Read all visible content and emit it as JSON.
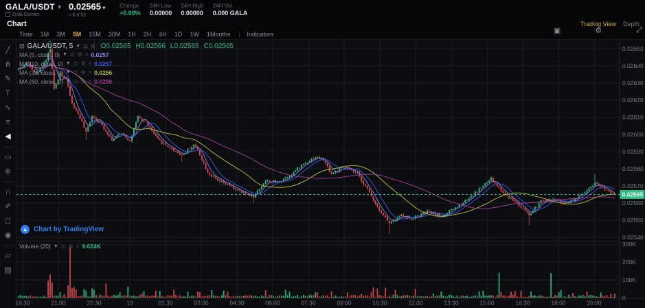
{
  "header": {
    "pair": "GALA/USDT",
    "pair_sub": "Gala Games",
    "price": "0.02565",
    "price_direction": "up",
    "price_usd": "≈ $ 0.02",
    "stats": [
      {
        "label": "Change",
        "value": "+0.00%",
        "color": "#2ebd85"
      },
      {
        "label": "24H Low",
        "value": "0.00000",
        "color": "#dfe1e4"
      },
      {
        "label": "24H High",
        "value": "0.00000",
        "color": "#dfe1e4"
      },
      {
        "label": "24H Vol.",
        "value": "0.000 GALA",
        "color": "#dfe1e4"
      }
    ]
  },
  "subheader": {
    "title": "Chart",
    "tabs": [
      {
        "label": "Trading View",
        "active": true
      },
      {
        "label": "Depth",
        "active": false
      }
    ]
  },
  "toolbar": {
    "timeframes": [
      "Time",
      "1M",
      "3M",
      "5M",
      "15M",
      "30M",
      "1H",
      "2H",
      "4H",
      "1D",
      "1W",
      "1Months"
    ],
    "active": "5M",
    "indicators_label": "Indicators",
    "right_icons": [
      "camera",
      "settings",
      "fullscreen"
    ]
  },
  "drawbar": {
    "tools": [
      "trend-line",
      "pitchfork",
      "brush",
      "text",
      "xabcd-pattern",
      "forecast",
      "collapse-left",
      "divider",
      "ruler",
      "zoom-in",
      "divider",
      "magnet",
      "drawing-lock",
      "lock",
      "eye",
      "divider",
      "layers",
      "trash"
    ]
  },
  "legend": {
    "menu_icon": "legend-menu-icon",
    "symbol": "GALA/USDT, 5",
    "ohlc": [
      "O0.02565",
      "H0.02566",
      "L0.02565",
      "C0.02565"
    ],
    "mas": [
      {
        "label": "MA (5, close, 0)",
        "value": "0.0257",
        "color": "#7e86e8"
      },
      {
        "label": "MA (10, close, 0)",
        "value": "0.0257",
        "color": "#3d56e0"
      },
      {
        "label": "MA (30, close, 0)",
        "value": "0.0256",
        "color": "#b9ba35"
      },
      {
        "label": "MA (60, close, 0)",
        "value": "0.0256",
        "color": "#a13e96"
      }
    ]
  },
  "volume_legend": {
    "label": "Volume (20)",
    "value": "9.624K"
  },
  "attribution": "Chart by TradingView",
  "colors": {
    "up": "#2ebd85",
    "down": "#e2464d",
    "accent_gold": "#d6a73f",
    "grid": "#1a1d24",
    "axis_text": "#767c87",
    "price_tag_bg": "#2ebd85",
    "tv_blue": "#2d7ff0",
    "current_price_line": "#2ebd85"
  },
  "chart_data": {
    "type": "candlestick+volume",
    "pair": "GALA/USDT",
    "interval": "5m",
    "current_price": 0.02565,
    "n_candles": 300,
    "price_ticks": [
      "0.02650",
      "0.02640",
      "0.02630",
      "0.02620",
      "0.02610",
      "0.02600",
      "0.02590",
      "0.02580",
      "0.02570",
      "0.02560",
      "0.02550",
      "0.02540"
    ],
    "price_tag": "0.02565",
    "volume_ticks": [
      "300K",
      "200K",
      "100K",
      "0"
    ],
    "time_ticks": [
      "19:30",
      "21:00",
      "22:30",
      "10",
      "01:30",
      "03:00",
      "04:30",
      "06:00",
      "07:30",
      "09:00",
      "10:30",
      "12:00",
      "13:30",
      "15:00",
      "16:30",
      "18:00",
      "20:00"
    ],
    "ma_periods": [
      5,
      10,
      30,
      60
    ],
    "price_keyframes": [
      [
        0,
        0.02638
      ],
      [
        5,
        0.02642
      ],
      [
        9,
        0.02635
      ],
      [
        14,
        0.02644
      ],
      [
        16,
        0.0265
      ],
      [
        18,
        0.02626
      ],
      [
        21,
        0.02636
      ],
      [
        24,
        0.02632
      ],
      [
        27,
        0.02618
      ],
      [
        31,
        0.0261
      ],
      [
        34,
        0.02601
      ],
      [
        37,
        0.02611
      ],
      [
        41,
        0.02607
      ],
      [
        47,
        0.02597
      ],
      [
        52,
        0.02601
      ],
      [
        56,
        0.02596
      ],
      [
        60,
        0.0261
      ],
      [
        64,
        0.02607
      ],
      [
        70,
        0.02597
      ],
      [
        75,
        0.02593
      ],
      [
        82,
        0.02588
      ],
      [
        88,
        0.02594
      ],
      [
        90,
        0.02591
      ],
      [
        95,
        0.02578
      ],
      [
        100,
        0.02573
      ],
      [
        106,
        0.0257
      ],
      [
        112,
        0.02566
      ],
      [
        118,
        0.02564
      ],
      [
        124,
        0.02573
      ],
      [
        130,
        0.02572
      ],
      [
        136,
        0.02576
      ],
      [
        143,
        0.02583
      ],
      [
        149,
        0.02587
      ],
      [
        153,
        0.02585
      ],
      [
        157,
        0.02577
      ],
      [
        163,
        0.02581
      ],
      [
        170,
        0.02577
      ],
      [
        175,
        0.02568
      ],
      [
        180,
        0.02558
      ],
      [
        186,
        0.02548
      ],
      [
        192,
        0.02553
      ],
      [
        197,
        0.02551
      ],
      [
        205,
        0.02555
      ],
      [
        212,
        0.02552
      ],
      [
        220,
        0.02558
      ],
      [
        228,
        0.02565
      ],
      [
        234,
        0.02571
      ],
      [
        237,
        0.02574
      ],
      [
        243,
        0.02566
      ],
      [
        250,
        0.0256
      ],
      [
        256,
        0.02553
      ],
      [
        262,
        0.02561
      ],
      [
        268,
        0.02562
      ],
      [
        274,
        0.0256
      ],
      [
        280,
        0.02563
      ],
      [
        286,
        0.02568
      ],
      [
        289,
        0.02571
      ],
      [
        293,
        0.02569
      ],
      [
        296,
        0.02567
      ],
      [
        299,
        0.02565
      ]
    ],
    "wicks": [
      [
        16,
        0.02655,
        "h"
      ],
      [
        34,
        0.02597,
        "l"
      ],
      [
        82,
        0.02584,
        "l"
      ],
      [
        118,
        0.0256,
        "l"
      ],
      [
        186,
        0.02542,
        "l"
      ],
      [
        256,
        0.02547,
        "l"
      ],
      [
        289,
        0.02577,
        "h"
      ]
    ],
    "volume_spikes": [
      [
        15,
        95,
        "d"
      ],
      [
        16,
        130,
        "d"
      ],
      [
        17,
        85,
        "d"
      ],
      [
        25,
        70,
        "d"
      ],
      [
        26,
        285,
        "d"
      ],
      [
        27,
        55,
        "d"
      ],
      [
        28,
        60,
        "d"
      ],
      [
        29,
        45,
        "d"
      ],
      [
        33,
        48,
        "u"
      ],
      [
        34,
        40,
        "u"
      ],
      [
        37,
        52,
        "u"
      ],
      [
        38,
        44,
        "u"
      ],
      [
        44,
        80,
        "d"
      ],
      [
        55,
        62,
        "u"
      ],
      [
        63,
        36,
        "u"
      ],
      [
        69,
        40,
        "d"
      ],
      [
        71,
        38,
        "u"
      ],
      [
        78,
        44,
        "d"
      ],
      [
        85,
        34,
        "u"
      ],
      [
        91,
        30,
        "d"
      ],
      [
        97,
        42,
        "u"
      ],
      [
        103,
        40,
        "u"
      ],
      [
        105,
        34,
        "d"
      ],
      [
        124,
        42,
        "d"
      ],
      [
        134,
        44,
        "u"
      ],
      [
        136,
        34,
        "u"
      ],
      [
        150,
        30,
        "d"
      ],
      [
        178,
        58,
        "d"
      ],
      [
        180,
        52,
        "d"
      ],
      [
        184,
        54,
        "d"
      ],
      [
        189,
        44,
        "d"
      ],
      [
        199,
        50,
        "d"
      ],
      [
        231,
        36,
        "u"
      ],
      [
        233,
        40,
        "u"
      ],
      [
        241,
        140,
        "u"
      ],
      [
        247,
        34,
        "d"
      ],
      [
        249,
        38,
        "d"
      ],
      [
        252,
        40,
        "d"
      ],
      [
        257,
        34,
        "u"
      ],
      [
        267,
        138,
        "u"
      ],
      [
        272,
        44,
        "u"
      ],
      [
        278,
        26,
        "d"
      ],
      [
        285,
        34,
        "d"
      ],
      [
        292,
        30,
        "u"
      ],
      [
        299,
        24,
        "d"
      ]
    ]
  }
}
